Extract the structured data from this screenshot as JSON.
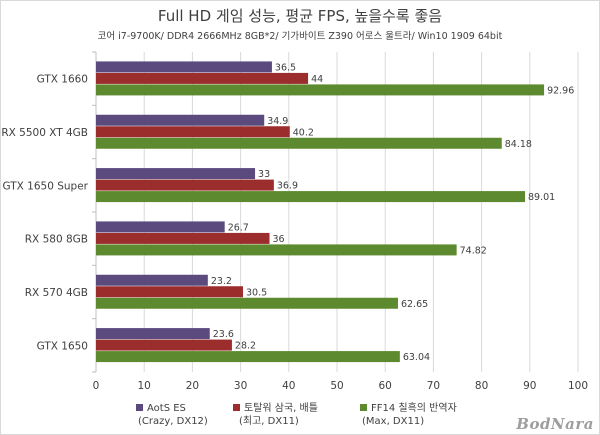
{
  "chart_data": {
    "type": "bar",
    "orientation": "horizontal",
    "title": "Full HD 게임 성능, 평균 FPS, 높을수록 좋음",
    "subtitle": "코어 i7-9700K/ DDR4 2666MHz 8GB*2/ 기가바이트 Z390 어로스 울트라/ Win10 1909 64bit",
    "categories": [
      "GTX 1660",
      "RX 5500 XT 4GB",
      "GTX 1650 Super",
      "RX 580 8GB",
      "RX 570 4GB",
      "GTX 1650"
    ],
    "series": [
      {
        "name": "AotS ES",
        "name_line2": "(Crazy, DX12)",
        "color": "#5b4a7e",
        "values": [
          36.5,
          34.9,
          33,
          26.7,
          23.2,
          23.6
        ]
      },
      {
        "name": "토탈워 삼국, 배틀",
        "name_line2": "(최고, DX11)",
        "color": "#9b2d2d",
        "values": [
          44,
          40.2,
          36.9,
          36,
          30.5,
          28.2
        ]
      },
      {
        "name": "FF14 칠흑의 반역자",
        "name_line2": "(Max, DX11)",
        "color": "#5d8a2e",
        "values": [
          92.96,
          84.18,
          89.01,
          74.82,
          62.65,
          63.04
        ]
      }
    ],
    "value_labels": [
      [
        "36.5",
        "34.9",
        "33",
        "26.7",
        "23.2",
        "23.6"
      ],
      [
        "44",
        "40.2",
        "36.9",
        "36",
        "30.5",
        "28.2"
      ],
      [
        "92.96",
        "84.18",
        "89.01",
        "74.82",
        "62.65",
        "63.04"
      ]
    ],
    "xlim": [
      0,
      100
    ],
    "xticks": [
      0,
      10,
      20,
      30,
      40,
      50,
      60,
      70,
      80,
      90,
      100
    ],
    "grid": true,
    "legend_position": "bottom"
  },
  "watermark": "BodNara"
}
